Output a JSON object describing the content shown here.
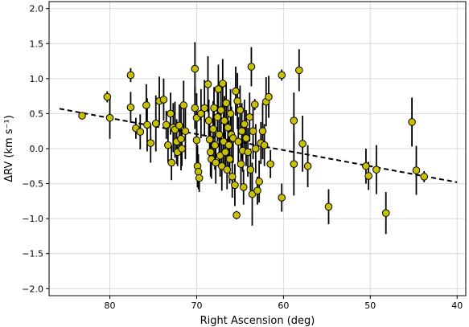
{
  "chart_data": {
    "type": "scatter",
    "xlabel": "Right Ascension (deg)",
    "ylabel": "ΔRV (km s⁻¹)",
    "xlim": [
      87,
      39
    ],
    "ylim": [
      -2.1,
      2.1
    ],
    "x_inverted": true,
    "x_ticks": [
      80,
      70,
      60,
      50,
      40
    ],
    "x_tick_labels": [
      "80",
      "70",
      "60",
      "50",
      "40"
    ],
    "y_ticks": [
      2.0,
      1.5,
      1.0,
      0.5,
      0.0,
      -0.5,
      -1.0,
      -1.5,
      -2.0
    ],
    "y_tick_labels": [
      "2.0",
      "1.5",
      "1.0",
      "0.5",
      "0.0",
      "−0.5",
      "−1.0",
      "−1.5",
      "−2.0"
    ],
    "grid": true,
    "marker_color": "#c9bf04",
    "errorbar_color": "#000000",
    "fit_line": {
      "x": [
        85.8,
        40.0
      ],
      "y": [
        0.57,
        -0.48
      ],
      "style": "dashed",
      "color": "#000000"
    },
    "points": [
      {
        "x": 83.2,
        "y": 0.47,
        "err": 0.02
      },
      {
        "x": 80.3,
        "y": 0.74,
        "err": 0.08
      },
      {
        "x": 80.0,
        "y": 0.44,
        "err": 0.3
      },
      {
        "x": 77.6,
        "y": 1.05,
        "err": 0.1
      },
      {
        "x": 77.6,
        "y": 0.59,
        "err": 0.22
      },
      {
        "x": 77.0,
        "y": 0.29,
        "err": 0.15
      },
      {
        "x": 76.5,
        "y": 0.24,
        "err": 0.25
      },
      {
        "x": 75.8,
        "y": 0.62,
        "err": 0.3
      },
      {
        "x": 75.7,
        "y": 0.34,
        "err": 0.38
      },
      {
        "x": 75.3,
        "y": 0.08,
        "err": 0.28
      },
      {
        "x": 74.7,
        "y": 0.36,
        "err": 0.4
      },
      {
        "x": 74.3,
        "y": 0.68,
        "err": 0.35
      },
      {
        "x": 73.8,
        "y": 0.7,
        "err": 0.3
      },
      {
        "x": 73.5,
        "y": 0.34,
        "err": 0.2
      },
      {
        "x": 73.3,
        "y": 0.05,
        "err": 0.25
      },
      {
        "x": 73.0,
        "y": 0.5,
        "err": 0.3
      },
      {
        "x": 72.9,
        "y": -0.2,
        "err": 0.25
      },
      {
        "x": 72.7,
        "y": 0.3,
        "err": 0.35
      },
      {
        "x": 72.5,
        "y": 0.27,
        "err": 0.4
      },
      {
        "x": 72.3,
        "y": 0.1,
        "err": 0.32
      },
      {
        "x": 72.2,
        "y": -0.05,
        "err": 0.2
      },
      {
        "x": 72.0,
        "y": 0.33,
        "err": 0.3
      },
      {
        "x": 71.8,
        "y": 0.14,
        "err": 0.45
      },
      {
        "x": 71.7,
        "y": 0.0,
        "err": 0.25
      },
      {
        "x": 71.5,
        "y": 0.62,
        "err": 0.35
      },
      {
        "x": 71.3,
        "y": 0.25,
        "err": 0.4
      },
      {
        "x": 70.2,
        "y": 1.14,
        "err": 0.38
      },
      {
        "x": 70.2,
        "y": 0.58,
        "err": 0.3
      },
      {
        "x": 70.0,
        "y": 0.44,
        "err": 0.35
      },
      {
        "x": 70.0,
        "y": 0.12,
        "err": 0.4
      },
      {
        "x": 69.9,
        "y": -0.25,
        "err": 0.3
      },
      {
        "x": 69.8,
        "y": -0.33,
        "err": 0.25
      },
      {
        "x": 69.7,
        "y": -0.42,
        "err": 0.2
      },
      {
        "x": 69.5,
        "y": 0.5,
        "err": 0.35
      },
      {
        "x": 69.1,
        "y": 0.58,
        "err": 0.4
      },
      {
        "x": 68.7,
        "y": 0.92,
        "err": 0.4
      },
      {
        "x": 68.6,
        "y": 0.4,
        "err": 0.3
      },
      {
        "x": 68.5,
        "y": 0.13,
        "err": 0.3
      },
      {
        "x": 68.4,
        "y": -0.05,
        "err": 0.35
      },
      {
        "x": 68.3,
        "y": -0.15,
        "err": 0.28
      },
      {
        "x": 68.1,
        "y": 0.28,
        "err": 0.4
      },
      {
        "x": 68.0,
        "y": 0.58,
        "err": 0.3
      },
      {
        "x": 67.9,
        "y": 0.05,
        "err": 0.35
      },
      {
        "x": 67.8,
        "y": -0.2,
        "err": 0.3
      },
      {
        "x": 67.6,
        "y": 0.45,
        "err": 0.35
      },
      {
        "x": 67.5,
        "y": 0.85,
        "err": 0.35
      },
      {
        "x": 67.4,
        "y": 0.2,
        "err": 0.4
      },
      {
        "x": 67.3,
        "y": -0.1,
        "err": 0.3
      },
      {
        "x": 67.2,
        "y": 0.55,
        "err": 0.4
      },
      {
        "x": 67.1,
        "y": -0.25,
        "err": 0.35
      },
      {
        "x": 67.0,
        "y": 0.93,
        "err": 0.35
      },
      {
        "x": 66.9,
        "y": 0.1,
        "err": 0.4
      },
      {
        "x": 66.8,
        "y": 0.4,
        "err": 0.35
      },
      {
        "x": 66.7,
        "y": -0.05,
        "err": 0.3
      },
      {
        "x": 66.6,
        "y": 0.65,
        "err": 0.3
      },
      {
        "x": 66.5,
        "y": -0.3,
        "err": 0.28
      },
      {
        "x": 66.4,
        "y": 0.3,
        "err": 0.4
      },
      {
        "x": 66.3,
        "y": 0.05,
        "err": 0.35
      },
      {
        "x": 66.2,
        "y": -0.15,
        "err": 0.35
      },
      {
        "x": 66.1,
        "y": 0.5,
        "err": 0.35
      },
      {
        "x": 66.0,
        "y": 0.2,
        "err": 0.4
      },
      {
        "x": 65.9,
        "y": -0.4,
        "err": 0.3
      },
      {
        "x": 65.8,
        "y": 0.15,
        "err": 0.35
      },
      {
        "x": 65.6,
        "y": -0.52,
        "err": 0.3
      },
      {
        "x": 65.5,
        "y": 0.82,
        "err": 0.35
      },
      {
        "x": 65.4,
        "y": -0.95,
        "err": 0.06
      },
      {
        "x": 65.3,
        "y": 0.68,
        "err": 0.4
      },
      {
        "x": 65.2,
        "y": 0.1,
        "err": 0.35
      },
      {
        "x": 65.0,
        "y": 0.55,
        "err": 0.35
      },
      {
        "x": 64.9,
        "y": -0.22,
        "err": 0.3
      },
      {
        "x": 64.8,
        "y": 0.25,
        "err": 0.4
      },
      {
        "x": 64.7,
        "y": -0.03,
        "err": 0.3
      },
      {
        "x": 64.6,
        "y": -0.55,
        "err": 0.25
      },
      {
        "x": 64.5,
        "y": 0.35,
        "err": 0.35
      },
      {
        "x": 64.3,
        "y": 0.15,
        "err": 0.4
      },
      {
        "x": 64.1,
        "y": -0.05,
        "err": 0.35
      },
      {
        "x": 63.9,
        "y": 0.45,
        "err": 0.35
      },
      {
        "x": 63.8,
        "y": -0.3,
        "err": 0.3
      },
      {
        "x": 63.7,
        "y": 1.17,
        "err": 0.28
      },
      {
        "x": 63.6,
        "y": -0.65,
        "err": 0.45
      },
      {
        "x": 63.5,
        "y": 0.25,
        "err": 0.4
      },
      {
        "x": 63.3,
        "y": 0.63,
        "err": 0.08
      },
      {
        "x": 63.2,
        "y": 0.0,
        "err": 0.35
      },
      {
        "x": 63.0,
        "y": -0.6,
        "err": 0.2
      },
      {
        "x": 62.8,
        "y": -0.47,
        "err": 0.3
      },
      {
        "x": 62.6,
        "y": 0.08,
        "err": 0.3
      },
      {
        "x": 62.4,
        "y": 0.25,
        "err": 0.4
      },
      {
        "x": 62.2,
        "y": 0.05,
        "err": 0.3
      },
      {
        "x": 62.0,
        "y": 0.67,
        "err": 0.35
      },
      {
        "x": 61.7,
        "y": 0.74,
        "err": 0.3
      },
      {
        "x": 61.5,
        "y": -0.22,
        "err": 0.2
      },
      {
        "x": 60.2,
        "y": 1.05,
        "err": 0.08
      },
      {
        "x": 60.2,
        "y": -0.7,
        "err": 0.2
      },
      {
        "x": 58.8,
        "y": 0.4,
        "err": 0.4
      },
      {
        "x": 58.8,
        "y": -0.22,
        "err": 0.45
      },
      {
        "x": 58.2,
        "y": 1.12,
        "err": 0.3
      },
      {
        "x": 57.8,
        "y": 0.07,
        "err": 0.4
      },
      {
        "x": 57.2,
        "y": -0.25,
        "err": 0.3
      },
      {
        "x": 54.8,
        "y": -0.83,
        "err": 0.25
      },
      {
        "x": 50.5,
        "y": -0.25,
        "err": 0.25
      },
      {
        "x": 50.2,
        "y": -0.39,
        "err": 0.2
      },
      {
        "x": 49.3,
        "y": -0.3,
        "err": 0.35
      },
      {
        "x": 48.2,
        "y": -0.92,
        "err": 0.3
      },
      {
        "x": 45.2,
        "y": 0.38,
        "err": 0.35
      },
      {
        "x": 44.7,
        "y": -0.31,
        "err": 0.35
      },
      {
        "x": 43.8,
        "y": -0.4,
        "err": 0.08
      }
    ]
  }
}
